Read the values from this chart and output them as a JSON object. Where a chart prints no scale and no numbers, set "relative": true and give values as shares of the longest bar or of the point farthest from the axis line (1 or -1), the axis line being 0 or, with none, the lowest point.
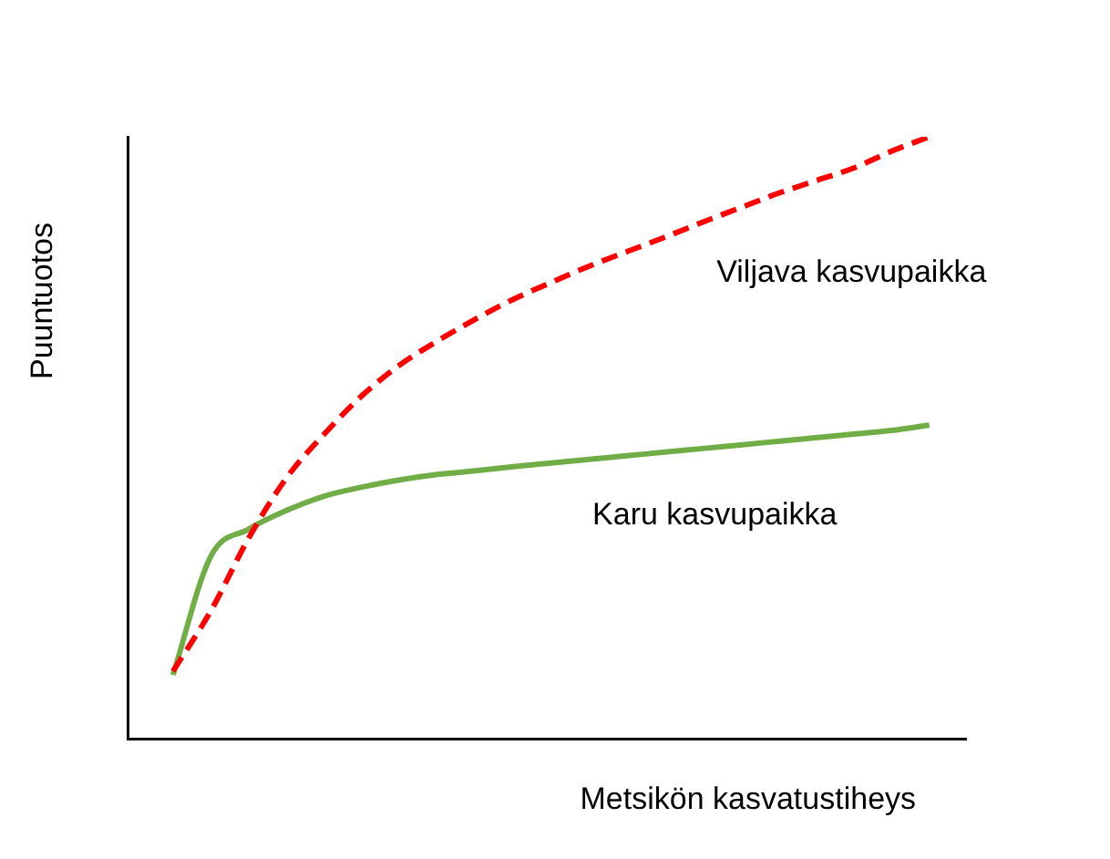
{
  "chart_data": {
    "type": "line",
    "relative": true,
    "xlabel": "Metsikön kasvatustiheys",
    "ylabel": "Puuntuotos",
    "legend": false,
    "marker": "none",
    "categories": [
      null,
      null,
      null,
      null,
      null,
      null,
      null,
      null,
      null,
      null,
      null,
      null,
      null,
      null,
      null,
      null,
      null,
      null,
      null,
      null,
      null
    ],
    "series": [
      {
        "name": "Viljava kasvupaikka",
        "color": "#ff0000",
        "line_style": "dashed",
        "values": [
          0.112,
          0.212,
          0.333,
          0.433,
          0.506,
          0.57,
          0.621,
          0.661,
          0.697,
          0.73,
          0.758,
          0.785,
          0.809,
          0.833,
          0.858,
          0.882,
          0.906,
          0.927,
          0.948,
          0.976,
          1
        ]
      },
      {
        "name": "Karu kasvupaikka",
        "color": "#70ad47",
        "line_style": "solid",
        "values": [
          0.106,
          0.303,
          0.348,
          0.379,
          0.403,
          0.418,
          0.43,
          0.439,
          0.445,
          0.452,
          0.458,
          0.464,
          0.47,
          0.476,
          0.482,
          0.488,
          0.494,
          0.5,
          0.506,
          0.512,
          0.521
        ]
      }
    ]
  }
}
